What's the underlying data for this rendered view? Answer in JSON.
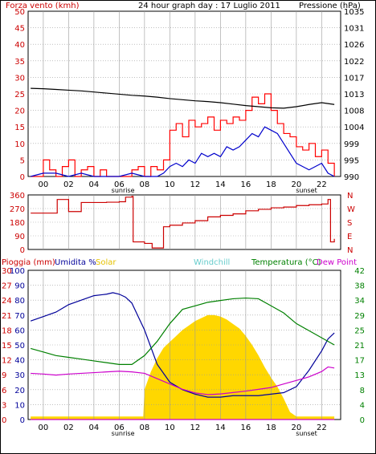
{
  "header": {
    "left_label": "Forza vento (kmh)",
    "title": "24 hour graph day : 17 Luglio 2011",
    "right_label": "Pressione (hPa)"
  },
  "colors": {
    "wind_red": "#ff0000",
    "wind_blue": "#0000cc",
    "pressure_black": "#000000",
    "direction_red": "#cc0000",
    "humidity_navy": "#000099",
    "solar_yellow": "#ffd700",
    "windchill_cyan": "#66cccc",
    "temperature_green": "#008000",
    "dewpoint_magenta": "#cc00cc",
    "rain_left_axis": "#cc0000",
    "grid": "#999999"
  },
  "chart_data": [
    {
      "type": "line",
      "title": "24 hour graph day : 17 Luglio 2011",
      "ylabel_left": "Forza vento (kmh)",
      "ylabel_right": "Pressione (hPa)",
      "xlim": [
        -1.2,
        23.5
      ],
      "ylim_left": [
        0,
        50
      ],
      "yticks_left": [
        0,
        5,
        10,
        15,
        20,
        25,
        30,
        35,
        40,
        45,
        50
      ],
      "ylim_right": [
        990,
        1035
      ],
      "yticks_right": [
        990,
        995,
        999,
        1004,
        1008,
        1013,
        1017,
        1022,
        1026,
        1031,
        1035
      ],
      "xticks": [
        "00",
        "02",
        "04",
        "06",
        "08",
        "10",
        "12",
        "14",
        "16",
        "18",
        "20",
        "22"
      ],
      "annotations": [
        "sunrise",
        "sunset"
      ],
      "grid": true,
      "series": [
        {
          "name": "Gust",
          "color": "#ff0000",
          "x": [
            -1.0,
            -0.5,
            0.0,
            0.5,
            1.0,
            1.5,
            2.0,
            2.5,
            3.0,
            3.5,
            4.0,
            4.5,
            5.0,
            5.5,
            6.0,
            6.5,
            7.0,
            7.5,
            8.0,
            8.5,
            9.0,
            9.5,
            10.0,
            10.5,
            11.0,
            11.5,
            12.0,
            12.5,
            13.0,
            13.5,
            14.0,
            14.5,
            15.0,
            15.5,
            16.0,
            16.5,
            17.0,
            17.5,
            18.0,
            18.5,
            19.0,
            19.5,
            20.0,
            20.5,
            21.0,
            21.5,
            22.0,
            22.5,
            23.0
          ],
          "values": [
            0,
            0,
            5,
            2,
            0,
            3,
            5,
            0,
            2,
            3,
            0,
            2,
            0,
            0,
            0,
            0,
            2,
            3,
            0,
            3,
            2,
            5,
            14,
            16,
            12,
            17,
            15,
            16,
            18,
            14,
            17,
            16,
            18,
            17,
            20,
            24,
            22,
            25,
            20,
            16,
            13,
            12,
            9,
            8,
            10,
            6,
            8,
            4,
            0
          ]
        },
        {
          "name": "Average",
          "color": "#0000cc",
          "x": [
            -1.0,
            0.0,
            1.0,
            2.0,
            3.0,
            4.0,
            5.0,
            6.0,
            7.0,
            8.0,
            8.5,
            9.0,
            9.5,
            10.0,
            10.5,
            11.0,
            11.5,
            12.0,
            12.5,
            13.0,
            13.5,
            14.0,
            14.5,
            15.0,
            15.5,
            16.0,
            16.5,
            17.0,
            17.5,
            18.0,
            18.5,
            19.0,
            19.5,
            20.0,
            20.5,
            21.0,
            21.5,
            22.0,
            22.5,
            23.0
          ],
          "values": [
            0,
            1,
            1,
            0,
            1,
            0,
            0,
            0,
            1,
            0,
            0,
            0,
            1,
            3,
            4,
            3,
            5,
            4,
            7,
            6,
            7,
            6,
            9,
            8,
            9,
            11,
            13,
            12,
            15,
            14,
            13,
            10,
            7,
            4,
            3,
            2,
            3,
            4,
            1,
            0
          ]
        },
        {
          "name": "Pressione",
          "color": "#000000",
          "axis": "right",
          "x": [
            -1.0,
            0.0,
            1.0,
            2.0,
            3.0,
            4.0,
            5.0,
            6.0,
            7.0,
            8.0,
            9.0,
            10.0,
            11.0,
            12.0,
            13.0,
            14.0,
            15.0,
            16.0,
            17.0,
            18.0,
            19.0,
            20.0,
            21.0,
            22.0,
            23.0
          ],
          "values": [
            1014.0,
            1013.9,
            1013.7,
            1013.5,
            1013.3,
            1013.0,
            1012.7,
            1012.4,
            1012.1,
            1011.9,
            1011.6,
            1011.2,
            1010.9,
            1010.6,
            1010.4,
            1010.1,
            1009.7,
            1009.3,
            1009.0,
            1008.7,
            1008.6,
            1009.0,
            1009.6,
            1010.1,
            1009.6
          ]
        }
      ]
    },
    {
      "type": "line",
      "ylabel_right": "N W S E N",
      "ylim": [
        0,
        360
      ],
      "yticks": [
        0,
        90,
        180,
        270,
        360
      ],
      "compass": [
        "N",
        "W",
        "S",
        "E",
        "N"
      ],
      "xlim": [
        -1.2,
        23.5
      ],
      "grid": true,
      "series": [
        {
          "name": "Direzione vento",
          "color": "#cc0000",
          "x": [
            -1.0,
            0.0,
            1.0,
            1.1,
            1.9,
            2.0,
            2.9,
            3.0,
            4.0,
            5.0,
            6.0,
            6.5,
            7.0,
            7.1,
            8.0,
            8.5,
            8.6,
            9.0,
            9.5,
            10.0,
            11.0,
            12.0,
            13.0,
            14.0,
            15.0,
            16.0,
            17.0,
            18.0,
            19.0,
            20.0,
            21.0,
            22.0,
            22.5,
            22.7,
            23.0
          ],
          "values": [
            240,
            240,
            240,
            330,
            330,
            250,
            250,
            310,
            310,
            312,
            315,
            345,
            350,
            50,
            40,
            40,
            10,
            10,
            150,
            160,
            175,
            190,
            215,
            225,
            235,
            255,
            265,
            275,
            280,
            290,
            295,
            300,
            330,
            50,
            70
          ]
        }
      ]
    },
    {
      "type": "area",
      "xlim": [
        -1.2,
        23.5
      ],
      "xticks": [
        "00",
        "02",
        "04",
        "06",
        "08",
        "10",
        "12",
        "14",
        "16",
        "18",
        "20",
        "22"
      ],
      "annotations": [
        "sunrise",
        "sunset"
      ],
      "header_labels": [
        "Pioggia (mm)",
        "Umidita %",
        "Solar",
        "Windchill",
        "Temperatura (°C)",
        "Dew Point"
      ],
      "axis_pioggia": {
        "ticks": [
          0,
          3,
          6,
          9,
          12,
          15,
          18,
          21,
          24,
          27,
          30
        ]
      },
      "axis_umidita": {
        "ticks": [
          0,
          10,
          20,
          30,
          40,
          50,
          60,
          70,
          80,
          90,
          100
        ]
      },
      "axis_temperatura": {
        "ticks": [
          0,
          4,
          8,
          13,
          17,
          21,
          25,
          29,
          34,
          38,
          42
        ]
      },
      "grid": true,
      "series": [
        {
          "name": "Solar",
          "color": "#ffd700",
          "axis": "umidita",
          "x": [
            -1.0,
            7.9,
            8.0,
            8.5,
            9.0,
            9.5,
            10.0,
            10.5,
            11.0,
            11.5,
            12.0,
            12.5,
            13.0,
            13.5,
            14.0,
            14.5,
            15.0,
            15.5,
            16.0,
            16.5,
            17.0,
            17.5,
            18.0,
            18.5,
            19.0,
            19.5,
            20.0,
            23.0
          ],
          "values": [
            2,
            2,
            20,
            32,
            41,
            48,
            52,
            56,
            60,
            63,
            66,
            68,
            70,
            70,
            69,
            67,
            64,
            61,
            56,
            50,
            43,
            35,
            28,
            22,
            14,
            5,
            2,
            2
          ]
        },
        {
          "name": "Umidita %",
          "color": "#000099",
          "axis": "umidita",
          "x": [
            -1.0,
            0.0,
            1.0,
            2.0,
            3.0,
            4.0,
            5.0,
            5.5,
            6.0,
            6.5,
            7.0,
            8.0,
            9.0,
            10.0,
            11.0,
            12.0,
            13.0,
            14.0,
            15.0,
            16.0,
            17.0,
            18.0,
            19.0,
            20.0,
            21.0,
            22.0,
            22.5,
            23.0
          ],
          "values": [
            66,
            69,
            72,
            77,
            80,
            83,
            84,
            85,
            84,
            82,
            78,
            60,
            37,
            25,
            20,
            17,
            15,
            15,
            16,
            16,
            16,
            17,
            18,
            22,
            33,
            46,
            54,
            58
          ]
        },
        {
          "name": "Temperatura (°C)",
          "color": "#008000",
          "axis": "temperatura",
          "x": [
            -1.0,
            0.0,
            1.0,
            2.0,
            3.0,
            4.0,
            5.0,
            6.0,
            7.0,
            8.0,
            9.0,
            10.0,
            11.0,
            12.0,
            13.0,
            14.0,
            15.0,
            16.0,
            17.0,
            18.0,
            19.0,
            20.0,
            21.0,
            22.0,
            23.0
          ],
          "values": [
            20,
            19,
            18,
            17.5,
            17,
            16.5,
            16,
            15.5,
            15.5,
            18,
            22,
            27,
            31,
            32,
            33,
            33.5,
            34,
            34.2,
            34,
            32,
            30,
            27,
            25,
            23,
            21
          ]
        },
        {
          "name": "Dew Point",
          "color": "#cc00cc",
          "axis": "temperatura",
          "x": [
            -1.0,
            0.0,
            1.0,
            2.0,
            3.0,
            4.0,
            5.0,
            6.0,
            7.0,
            8.0,
            9.0,
            10.0,
            11.0,
            12.0,
            13.0,
            14.0,
            15.0,
            16.0,
            17.0,
            18.0,
            19.0,
            20.0,
            21.0,
            22.0,
            22.5,
            23.0
          ],
          "values": [
            13,
            12.8,
            12.5,
            12.8,
            13,
            13.2,
            13.4,
            13.6,
            13.4,
            13,
            11.5,
            10,
            8.5,
            7.5,
            7,
            7.2,
            7.6,
            8,
            8.5,
            9,
            10,
            11,
            12,
            13.5,
            14.8,
            14.5
          ]
        },
        {
          "name": "Pioggia (mm)",
          "color": "#cc00cc",
          "axis": "pioggia",
          "x": [
            -1.0,
            23.0
          ],
          "values": [
            0,
            0
          ]
        }
      ]
    }
  ]
}
